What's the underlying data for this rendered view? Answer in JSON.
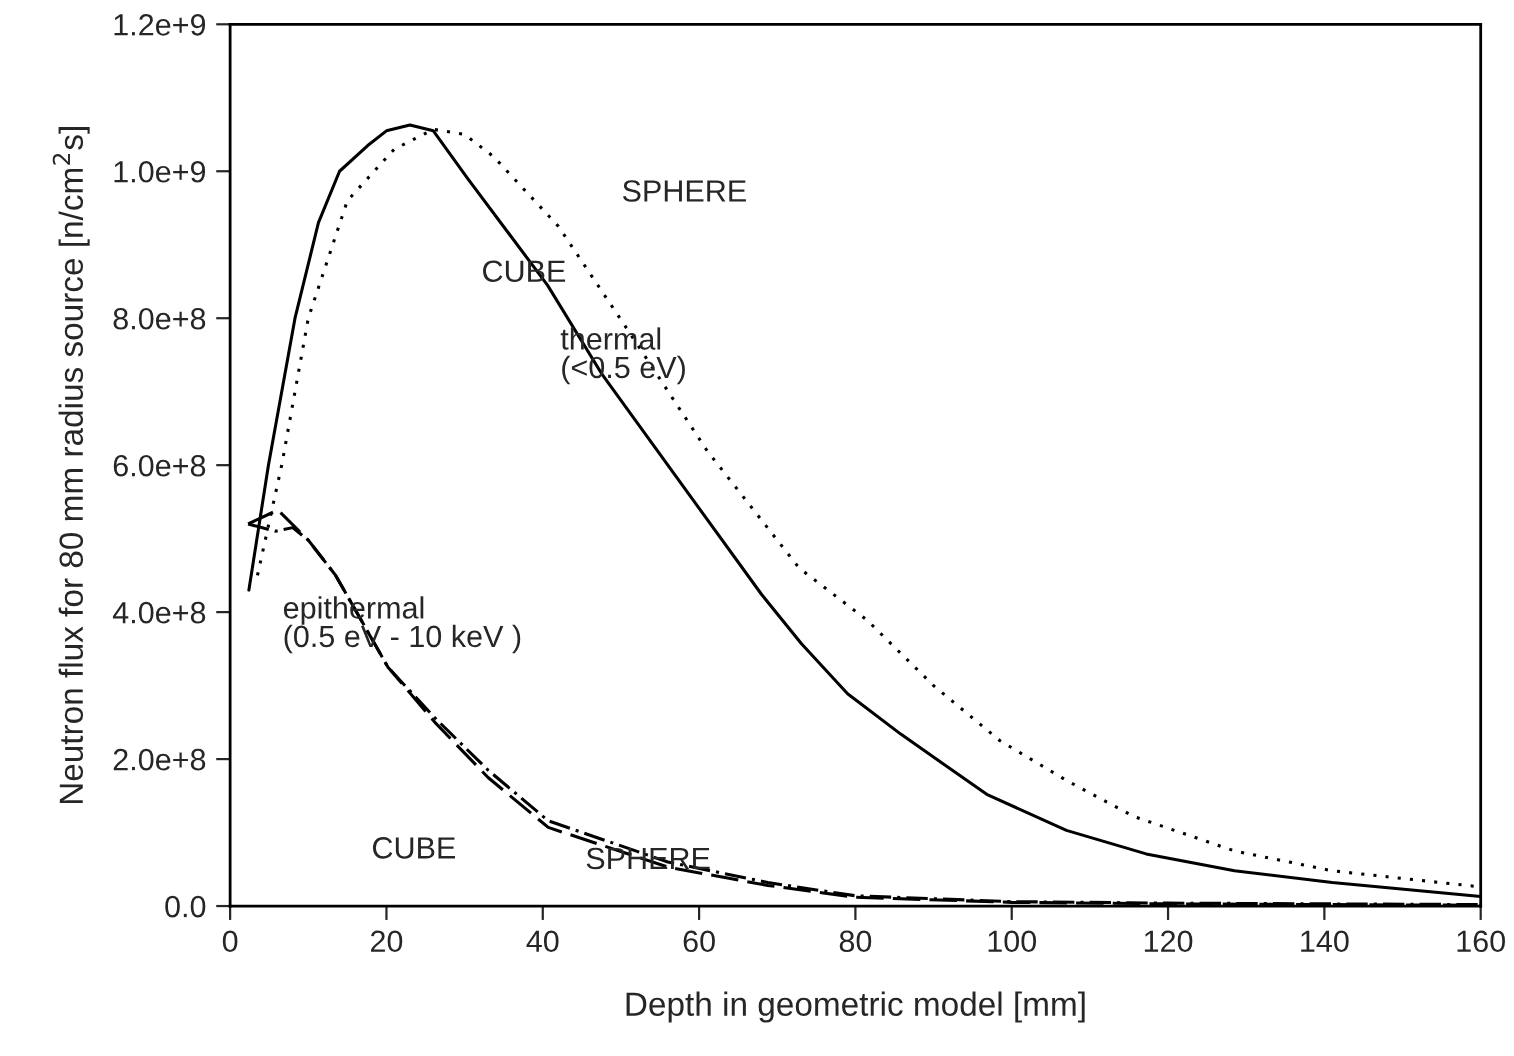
{
  "chart_data": {
    "type": "line",
    "xlabel": "Depth in geometric model [mm]",
    "ylabel": "Neutron flux for 80 mm radius source [n/cm$^{2}$s]",
    "xlim": [
      0,
      160
    ],
    "xticks": [
      0,
      20,
      40,
      60,
      80,
      100,
      120,
      140,
      160
    ],
    "ylim": [
      0,
      1200000000.0
    ],
    "yticks": [
      {
        "value": 0,
        "label": "0.0"
      },
      {
        "value": 200000000.0,
        "label": "2.0e+8"
      },
      {
        "value": 400000000.0,
        "label": "4.0e+8"
      },
      {
        "value": 600000000.0,
        "label": "6.0e+8"
      },
      {
        "value": 800000000.0,
        "label": "8.0e+8"
      },
      {
        "value": 1000000000.0,
        "label": "1.0e+9"
      },
      {
        "value": 1200000000.0,
        "label": "1.2e+9"
      }
    ],
    "grid": false,
    "series": [
      {
        "color": "#000000",
        "line_style": "solid",
        "x": [
          2.4,
          4.9,
          8.3,
          11.3,
          14,
          17.6,
          20,
          23,
          26,
          30.4,
          40.6,
          47.5,
          56,
          68,
          73.1,
          79,
          85.8,
          96.8,
          107,
          117.2,
          128.5,
          141,
          160
        ],
        "values": [
          430000000.0,
          600000000.0,
          800000000.0,
          930000000.0,
          1000000000.0,
          1035000000.0,
          1055000000.0,
          1063000000.0,
          1055000000.0,
          990000000.0,
          845000000.0,
          725000000.0,
          600000000.0,
          424000000.0,
          357000000.0,
          289000000.0,
          234000000.0,
          152000000.0,
          103000000.0,
          71000000.0,
          48000000.0,
          32000000.0,
          13000000.0
        ]
      },
      {
        "color": "#000000",
        "line_style": "dotted",
        "x": [
          3.5,
          6.6,
          10,
          15,
          21,
          26,
          30,
          33.7,
          42,
          50.5,
          61,
          72.8,
          81.5,
          90,
          98.5,
          107,
          115.6,
          128.5,
          141,
          160
        ],
        "values": [
          450000000.0,
          600000000.0,
          800000000.0,
          960000000.0,
          1030000000.0,
          1057000000.0,
          1050000000.0,
          1020000000.0,
          925000000.0,
          790000000.0,
          620000000.0,
          460000000.0,
          389000000.0,
          300000000.0,
          225000000.0,
          171000000.0,
          122000000.0,
          75000000.0,
          48000000.0,
          26000000.0
        ]
      },
      {
        "color": "#000000",
        "line_style": "dashed",
        "x": [
          2.3,
          6.1,
          10,
          13.5,
          20.2,
          26.2,
          33,
          40.7,
          56,
          68.8,
          80,
          100,
          120,
          140,
          160
        ],
        "values": [
          520000000.0,
          539000000.0,
          498000000.0,
          450000000.0,
          325000000.0,
          250000000.0,
          175000000.0,
          107000000.0,
          53000000.0,
          28000000.0,
          12000000.0,
          5000000.0,
          3000000.0,
          2000000.0,
          1000000.0
        ]
      },
      {
        "color": "#000000",
        "line_style": "dashdot",
        "x": [
          2.3,
          5.8,
          8,
          10,
          13.5,
          20.2,
          26.2,
          33,
          40.7,
          56,
          68.8,
          80,
          100,
          120,
          140,
          160
        ],
        "values": [
          520000000.0,
          510000000.0,
          515000000.0,
          498000000.0,
          450000000.0,
          325000000.0,
          256000000.0,
          185000000.0,
          116000000.0,
          60000000.0,
          32000000.0,
          14000000.0,
          6000000.0,
          4000000.0,
          3000000.0,
          2000000.0
        ]
      }
    ],
    "annotations": [
      "SPHERE",
      "CUBE",
      "thermal\n(<0.5 eV)",
      "epithermal\n(0.5 eV - 10 keV )",
      "CUBE",
      "SPHERE"
    ]
  }
}
